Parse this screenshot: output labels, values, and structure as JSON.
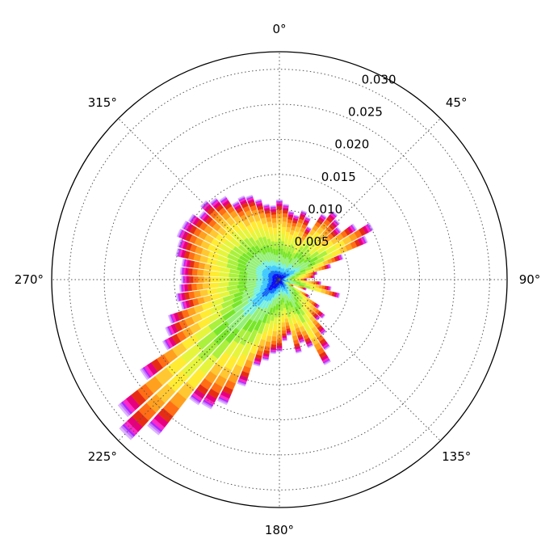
{
  "chart_data": {
    "type": "polar-stacked-bar",
    "title": "",
    "direction": "clockwise",
    "zero_location": "N",
    "radial_ticks": [
      "0.005",
      "0.010",
      "0.015",
      "0.020",
      "0.025",
      "0.030"
    ],
    "radial_tick_values": [
      0.005,
      0.01,
      0.015,
      0.02,
      0.025,
      0.03
    ],
    "r_max": 0.0325,
    "angle_ticks": [
      "0°",
      "45°",
      "90°",
      "135°",
      "180°",
      "225°",
      "270°",
      "315°"
    ],
    "angle_tick_values": [
      0,
      45,
      90,
      135,
      180,
      225,
      270,
      315
    ],
    "grid": true,
    "bin_width_deg": 5,
    "directions_deg": [
      0,
      5,
      10,
      15,
      20,
      25,
      30,
      35,
      40,
      45,
      50,
      55,
      60,
      65,
      70,
      75,
      80,
      85,
      90,
      95,
      100,
      105,
      110,
      115,
      120,
      125,
      130,
      135,
      140,
      145,
      150,
      155,
      160,
      165,
      170,
      175,
      180,
      185,
      190,
      195,
      200,
      205,
      210,
      215,
      220,
      225,
      230,
      235,
      240,
      245,
      250,
      255,
      260,
      265,
      270,
      275,
      280,
      285,
      290,
      295,
      300,
      305,
      310,
      315,
      320,
      325,
      330,
      335,
      340,
      345,
      350,
      355
    ],
    "totals": [
      0.0114,
      0.0108,
      0.0099,
      0.0095,
      0.0104,
      0.0098,
      0.0086,
      0.0112,
      0.0124,
      0.0118,
      0.0112,
      0.0132,
      0.0152,
      0.0137,
      0.0096,
      0.0076,
      0.0055,
      0.0051,
      0.004,
      0.006,
      0.0075,
      0.0089,
      0.0041,
      0.0022,
      0.0049,
      0.0069,
      0.0083,
      0.008,
      0.01,
      0.012,
      0.0138,
      0.0106,
      0.0096,
      0.0108,
      0.0081,
      0.0088,
      0.0103,
      0.0106,
      0.0117,
      0.0127,
      0.016,
      0.0194,
      0.0209,
      0.0213,
      0.0281,
      0.0312,
      0.0292,
      0.0237,
      0.0189,
      0.0177,
      0.0167,
      0.0145,
      0.0149,
      0.0143,
      0.014,
      0.0142,
      0.0141,
      0.0152,
      0.0153,
      0.0159,
      0.0158,
      0.0155,
      0.0146,
      0.0154,
      0.0148,
      0.0142,
      0.0127,
      0.013,
      0.0127,
      0.0118,
      0.0109,
      0.0106
    ],
    "stack_colors": [
      "#23238c",
      "#0000ff",
      "#0a64ff",
      "#3cc8ff",
      "#78f0dc",
      "#96f078",
      "#78e628",
      "#aaf03c",
      "#e6f53c",
      "#ffeb32",
      "#ffc832",
      "#ffa01e",
      "#ff6e14",
      "#e62d14",
      "#e6007d",
      "#ff28c8",
      "#aa28ff",
      "#c878ff",
      "#dcb4ff"
    ],
    "stack_fractions": [
      0.03,
      0.04,
      0.04,
      0.06,
      0.06,
      0.1,
      0.08,
      0.1,
      0.1,
      0.09,
      0.07,
      0.06,
      0.05,
      0.04,
      0.03,
      0.02,
      0.01,
      0.01,
      0.01
    ],
    "accent": {
      "axis": "#000000",
      "grid": "#555555"
    }
  }
}
